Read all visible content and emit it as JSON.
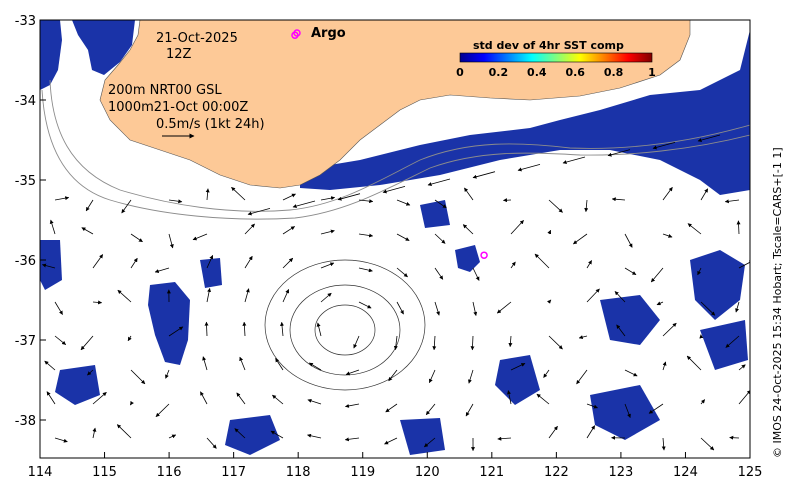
{
  "map": {
    "date": "21-Oct-2025",
    "hour": "12Z",
    "argo_label": "Argo",
    "depth_text": "200m  NRT00 GSL",
    "depth2_text": "1000m21-Oct 00:00Z",
    "scale_text": "0.5m/s (1kt 24h)",
    "credit": "© IMOS 24-Oct-2025 15:34 Hobart; Tscale=CARS+[-1 1]",
    "lon_ticks": [
      "114",
      "115",
      "116",
      "117",
      "118",
      "119",
      "120",
      "121",
      "122",
      "123",
      "124",
      "125"
    ],
    "lat_ticks": [
      "-33",
      "-34",
      "-35",
      "-36",
      "-37",
      "-38"
    ],
    "lon_range": [
      114,
      125
    ],
    "lat_range": [
      -38.5,
      -33
    ],
    "colorbar": {
      "title": "std dev of 4hr SST comp",
      "ticks": [
        "0",
        "0.2",
        "0.4",
        "0.6",
        "0.8",
        "1"
      ],
      "range": [
        0,
        1
      ]
    },
    "colors": {
      "land": "#fdc997",
      "sst_dark": "#1a33a8",
      "sst_mid": "#3a5fd9",
      "argo": "#ff00ff",
      "contour": "#8c8c8c"
    },
    "argo_floats": [
      {
        "lon": 117.95,
        "lat": -33.19
      },
      {
        "lon": 120.88,
        "lat": -35.94
      }
    ]
  }
}
